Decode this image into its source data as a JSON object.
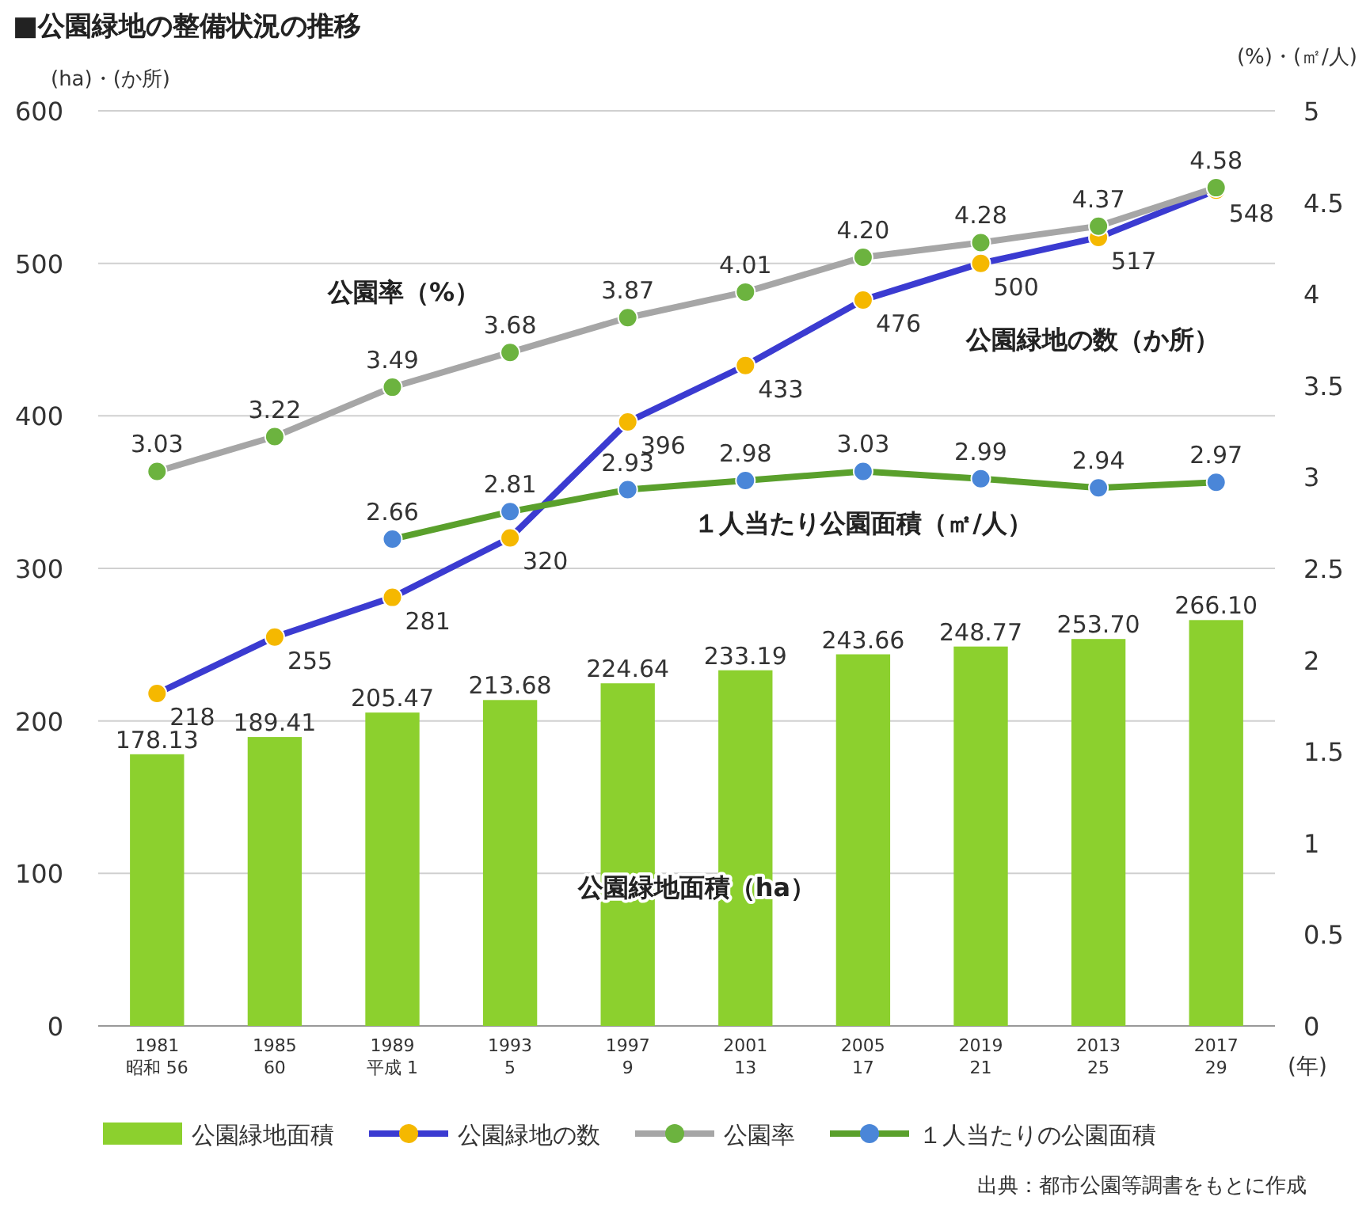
{
  "chart_data": {
    "type": "bar",
    "title": "■公園緑地の整備状況の推移",
    "ylabel": "(ha)・(か所)",
    "y2label": "(%)・(㎡/人)",
    "xlabel": "(年)",
    "categories": [
      "1981\n昭和 56",
      "1985\n60",
      "1989\n平成 1",
      "1993\n5",
      "1997\n9",
      "2001\n13",
      "2005\n17",
      "2019\n21",
      "2013\n25",
      "2017\n29"
    ],
    "ylim": [
      0,
      600
    ],
    "yticks": [
      0,
      100,
      200,
      300,
      400,
      500,
      600
    ],
    "y2lim": [
      0,
      5
    ],
    "y2ticks": [
      0,
      0.5,
      1,
      1.5,
      2,
      2.5,
      3,
      3.5,
      4,
      4.5,
      5
    ],
    "grid": "y",
    "legend": "bottom",
    "marker": "circle",
    "line_style": "solid",
    "data_labels": true,
    "series": [
      {
        "name": "公園緑地面積",
        "color": "#8cd02e",
        "values": [
          178.13,
          189.41,
          205.47,
          213.68,
          224.64,
          233.19,
          243.66,
          248.77,
          253.7,
          266.1
        ],
        "value_labels": [
          "178.13",
          "189.41",
          "205.47",
          "213.68",
          "224.64",
          "233.19",
          "243.66",
          "248.77",
          "253.70",
          "266.10"
        ]
      },
      {
        "name": "公園緑地の数",
        "type": "line",
        "color": "#3b3bd1",
        "colors": [
          "#f5b800",
          "#f5b800",
          "#f5b800",
          "#f5b800",
          "#f5b800",
          "#f5b800",
          "#f5b800",
          "#f5b800",
          "#f5b800",
          "#f5b800"
        ],
        "values": [
          218,
          255,
          281,
          320,
          396,
          433,
          476,
          500,
          517,
          548
        ],
        "value_labels": [
          "218",
          "255",
          "281",
          "320",
          "396",
          "433",
          "476",
          "500",
          "517",
          "548"
        ]
      },
      {
        "name": "公園率",
        "type": "line",
        "axis": "y2",
        "color": "#a6a6a6",
        "colors": [
          "#6cb33f",
          "#6cb33f",
          "#6cb33f",
          "#6cb33f",
          "#6cb33f",
          "#6cb33f",
          "#6cb33f",
          "#6cb33f",
          "#6cb33f",
          "#6cb33f"
        ],
        "values": [
          3.03,
          3.22,
          3.49,
          3.68,
          3.87,
          4.01,
          4.2,
          4.28,
          4.37,
          4.58
        ],
        "value_labels": [
          "3.03",
          "3.22",
          "3.49",
          "3.68",
          "3.87",
          "4.01",
          "4.20",
          "4.28",
          "4.37",
          "4.58"
        ]
      },
      {
        "name": "１人当たりの公園面積",
        "type": "line",
        "axis": "y2",
        "color": "#5aa02c",
        "colors": [
          null,
          null,
          "#4a86d8",
          "#4a86d8",
          "#4a86d8",
          "#4a86d8",
          "#4a86d8",
          "#4a86d8",
          "#4a86d8",
          "#4a86d8"
        ],
        "values": [
          null,
          null,
          2.66,
          2.81,
          2.93,
          2.98,
          3.03,
          2.99,
          2.94,
          2.97
        ],
        "value_labels": [
          null,
          null,
          "2.66",
          "2.81",
          "2.93",
          "2.98",
          "3.03",
          "2.99",
          "2.94",
          "2.97"
        ]
      }
    ],
    "annotations": [
      "公園率（%）",
      "公園緑地の数（か所）",
      "１人当たり公園面積（㎡/人）",
      "公園緑地面積（ha）",
      "出典：都市公園等調書をもとに作成"
    ]
  }
}
